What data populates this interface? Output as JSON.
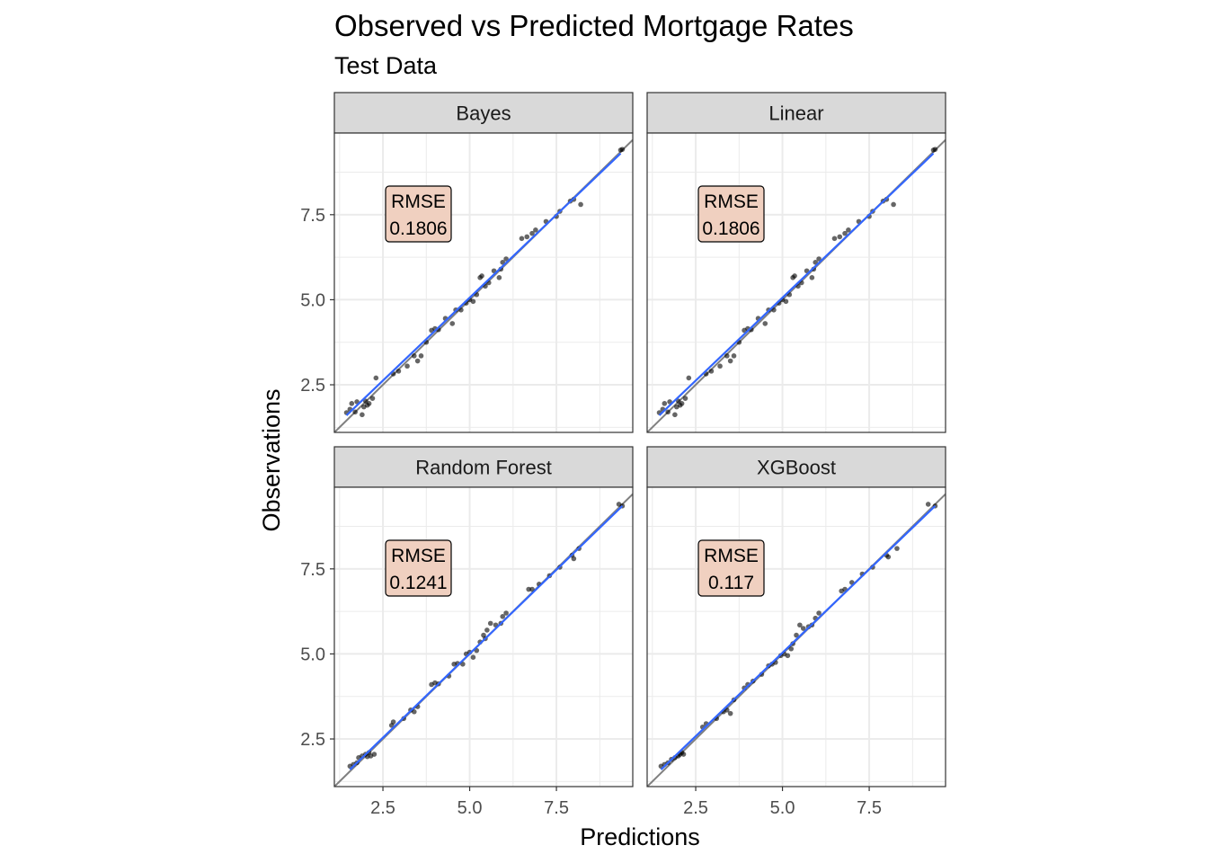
{
  "chart_data": {
    "type": "scatter",
    "title": "Observed vs Predicted Mortgage Rates",
    "subtitle": "Test Data",
    "xlabel": "Predictions",
    "ylabel": "Observations",
    "xlim": [
      1.1,
      9.7
    ],
    "ylim": [
      1.1,
      9.9
    ],
    "x_ticks": [
      "2.5",
      "5.0",
      "7.5"
    ],
    "y_ticks": [
      "2.5",
      "5.0",
      "7.5"
    ],
    "grid": true,
    "reference_line": "y = x",
    "colors": {
      "points": "#000000",
      "smooth_line": "#3366ff",
      "identity_line": "#808080",
      "strip_fill": "#d9d9d9",
      "label_fill": "#f0d0c0",
      "grid": "#ebebeb"
    },
    "panels": [
      {
        "name": "Bayes",
        "rmse_label": "RMSE",
        "rmse_value": "0.1806",
        "points": [
          [
            1.45,
            1.68
          ],
          [
            1.55,
            1.78
          ],
          [
            1.6,
            1.95
          ],
          [
            1.7,
            1.7
          ],
          [
            1.75,
            2.0
          ],
          [
            1.9,
            1.62
          ],
          [
            1.95,
            1.85
          ],
          [
            2.0,
            2.02
          ],
          [
            2.05,
            1.9
          ],
          [
            2.1,
            1.95
          ],
          [
            2.2,
            2.1
          ],
          [
            2.3,
            2.7
          ],
          [
            2.8,
            2.82
          ],
          [
            2.95,
            2.9
          ],
          [
            3.2,
            3.05
          ],
          [
            3.4,
            3.35
          ],
          [
            3.5,
            3.2
          ],
          [
            3.6,
            3.35
          ],
          [
            3.75,
            3.75
          ],
          [
            3.9,
            4.1
          ],
          [
            4.0,
            4.15
          ],
          [
            4.1,
            4.12
          ],
          [
            4.3,
            4.45
          ],
          [
            4.5,
            4.3
          ],
          [
            4.6,
            4.7
          ],
          [
            4.75,
            4.7
          ],
          [
            4.9,
            4.9
          ],
          [
            5.0,
            5.0
          ],
          [
            5.1,
            4.95
          ],
          [
            5.2,
            5.15
          ],
          [
            5.3,
            5.65
          ],
          [
            5.35,
            5.7
          ],
          [
            5.45,
            5.4
          ],
          [
            5.55,
            5.5
          ],
          [
            5.7,
            5.85
          ],
          [
            5.85,
            5.65
          ],
          [
            5.9,
            5.9
          ],
          [
            5.95,
            6.1
          ],
          [
            6.05,
            6.2
          ],
          [
            6.5,
            6.8
          ],
          [
            6.65,
            6.85
          ],
          [
            6.8,
            6.95
          ],
          [
            6.9,
            7.05
          ],
          [
            7.2,
            7.3
          ],
          [
            7.5,
            7.45
          ],
          [
            7.6,
            7.6
          ],
          [
            7.9,
            7.9
          ],
          [
            8.0,
            7.95
          ],
          [
            8.2,
            7.8
          ],
          [
            9.35,
            9.4
          ],
          [
            9.4,
            9.42
          ]
        ],
        "smooth_line": [
          [
            1.45,
            1.6
          ],
          [
            9.35,
            9.3
          ]
        ]
      },
      {
        "name": "Linear",
        "rmse_label": "RMSE",
        "rmse_value": "0.1806",
        "points": [
          [
            1.45,
            1.68
          ],
          [
            1.55,
            1.78
          ],
          [
            1.6,
            1.95
          ],
          [
            1.7,
            1.7
          ],
          [
            1.75,
            2.0
          ],
          [
            1.9,
            1.62
          ],
          [
            1.95,
            1.85
          ],
          [
            2.0,
            2.02
          ],
          [
            2.05,
            1.9
          ],
          [
            2.1,
            1.95
          ],
          [
            2.2,
            2.1
          ],
          [
            2.3,
            2.7
          ],
          [
            2.8,
            2.82
          ],
          [
            2.95,
            2.9
          ],
          [
            3.2,
            3.05
          ],
          [
            3.4,
            3.35
          ],
          [
            3.5,
            3.2
          ],
          [
            3.6,
            3.35
          ],
          [
            3.75,
            3.75
          ],
          [
            3.9,
            4.1
          ],
          [
            4.0,
            4.15
          ],
          [
            4.1,
            4.12
          ],
          [
            4.3,
            4.45
          ],
          [
            4.5,
            4.3
          ],
          [
            4.6,
            4.7
          ],
          [
            4.75,
            4.7
          ],
          [
            4.9,
            4.9
          ],
          [
            5.0,
            5.0
          ],
          [
            5.1,
            4.95
          ],
          [
            5.2,
            5.15
          ],
          [
            5.3,
            5.65
          ],
          [
            5.35,
            5.7
          ],
          [
            5.45,
            5.4
          ],
          [
            5.55,
            5.5
          ],
          [
            5.7,
            5.85
          ],
          [
            5.85,
            5.65
          ],
          [
            5.9,
            5.9
          ],
          [
            5.95,
            6.1
          ],
          [
            6.05,
            6.2
          ],
          [
            6.5,
            6.8
          ],
          [
            6.65,
            6.85
          ],
          [
            6.8,
            6.95
          ],
          [
            6.9,
            7.05
          ],
          [
            7.2,
            7.3
          ],
          [
            7.5,
            7.45
          ],
          [
            7.6,
            7.6
          ],
          [
            7.9,
            7.9
          ],
          [
            8.0,
            7.95
          ],
          [
            8.2,
            7.8
          ],
          [
            9.35,
            9.4
          ],
          [
            9.4,
            9.42
          ]
        ],
        "smooth_line": [
          [
            1.45,
            1.6
          ],
          [
            9.35,
            9.3
          ]
        ]
      },
      {
        "name": "Random Forest",
        "rmse_label": "RMSE",
        "rmse_value": "0.1241",
        "points": [
          [
            1.55,
            1.7
          ],
          [
            1.65,
            1.75
          ],
          [
            1.75,
            1.8
          ],
          [
            1.8,
            1.95
          ],
          [
            1.9,
            2.0
          ],
          [
            2.0,
            2.05
          ],
          [
            2.05,
            1.98
          ],
          [
            2.1,
            2.1
          ],
          [
            2.15,
            2.0
          ],
          [
            2.25,
            2.05
          ],
          [
            2.75,
            2.9
          ],
          [
            2.8,
            3.0
          ],
          [
            3.1,
            3.1
          ],
          [
            3.3,
            3.35
          ],
          [
            3.4,
            3.3
          ],
          [
            3.5,
            3.45
          ],
          [
            3.9,
            4.1
          ],
          [
            4.0,
            4.15
          ],
          [
            4.1,
            4.12
          ],
          [
            4.4,
            4.35
          ],
          [
            4.55,
            4.7
          ],
          [
            4.65,
            4.72
          ],
          [
            4.8,
            4.7
          ],
          [
            4.9,
            5.0
          ],
          [
            5.0,
            5.05
          ],
          [
            5.1,
            4.9
          ],
          [
            5.2,
            5.1
          ],
          [
            5.3,
            5.35
          ],
          [
            5.4,
            5.55
          ],
          [
            5.45,
            5.45
          ],
          [
            5.5,
            5.7
          ],
          [
            5.6,
            5.9
          ],
          [
            5.75,
            5.85
          ],
          [
            5.9,
            5.9
          ],
          [
            5.95,
            6.1
          ],
          [
            6.05,
            6.2
          ],
          [
            6.7,
            6.9
          ],
          [
            6.8,
            6.9
          ],
          [
            7.0,
            7.05
          ],
          [
            7.3,
            7.3
          ],
          [
            7.6,
            7.55
          ],
          [
            7.95,
            7.9
          ],
          [
            8.0,
            7.8
          ],
          [
            8.15,
            8.1
          ],
          [
            9.3,
            9.4
          ],
          [
            9.4,
            9.35
          ]
        ],
        "smooth_line": [
          [
            1.55,
            1.6
          ],
          [
            9.4,
            9.35
          ]
        ]
      },
      {
        "name": "XGBoost",
        "rmse_label": "RMSE",
        "rmse_value": "0.117",
        "points": [
          [
            1.5,
            1.7
          ],
          [
            1.6,
            1.75
          ],
          [
            1.7,
            1.8
          ],
          [
            1.8,
            1.9
          ],
          [
            1.9,
            1.95
          ],
          [
            2.0,
            2.0
          ],
          [
            2.05,
            2.05
          ],
          [
            2.1,
            2.1
          ],
          [
            2.15,
            2.05
          ],
          [
            2.7,
            2.85
          ],
          [
            2.8,
            2.95
          ],
          [
            3.1,
            3.1
          ],
          [
            3.3,
            3.3
          ],
          [
            3.4,
            3.35
          ],
          [
            3.5,
            3.25
          ],
          [
            3.6,
            3.65
          ],
          [
            3.9,
            4.0
          ],
          [
            4.0,
            4.1
          ],
          [
            4.15,
            4.2
          ],
          [
            4.4,
            4.4
          ],
          [
            4.6,
            4.65
          ],
          [
            4.7,
            4.7
          ],
          [
            4.8,
            4.75
          ],
          [
            4.95,
            4.95
          ],
          [
            5.05,
            5.0
          ],
          [
            5.15,
            4.95
          ],
          [
            5.25,
            5.15
          ],
          [
            5.3,
            5.3
          ],
          [
            5.4,
            5.55
          ],
          [
            5.5,
            5.85
          ],
          [
            5.6,
            5.75
          ],
          [
            5.75,
            5.8
          ],
          [
            5.85,
            5.85
          ],
          [
            5.95,
            6.05
          ],
          [
            6.05,
            6.2
          ],
          [
            6.7,
            6.85
          ],
          [
            6.8,
            6.9
          ],
          [
            7.0,
            7.1
          ],
          [
            7.3,
            7.35
          ],
          [
            7.6,
            7.55
          ],
          [
            8.0,
            7.9
          ],
          [
            8.05,
            7.85
          ],
          [
            8.3,
            8.1
          ],
          [
            9.2,
            9.4
          ],
          [
            9.4,
            9.35
          ]
        ],
        "smooth_line": [
          [
            1.5,
            1.6
          ],
          [
            9.4,
            9.35
          ]
        ]
      }
    ]
  }
}
